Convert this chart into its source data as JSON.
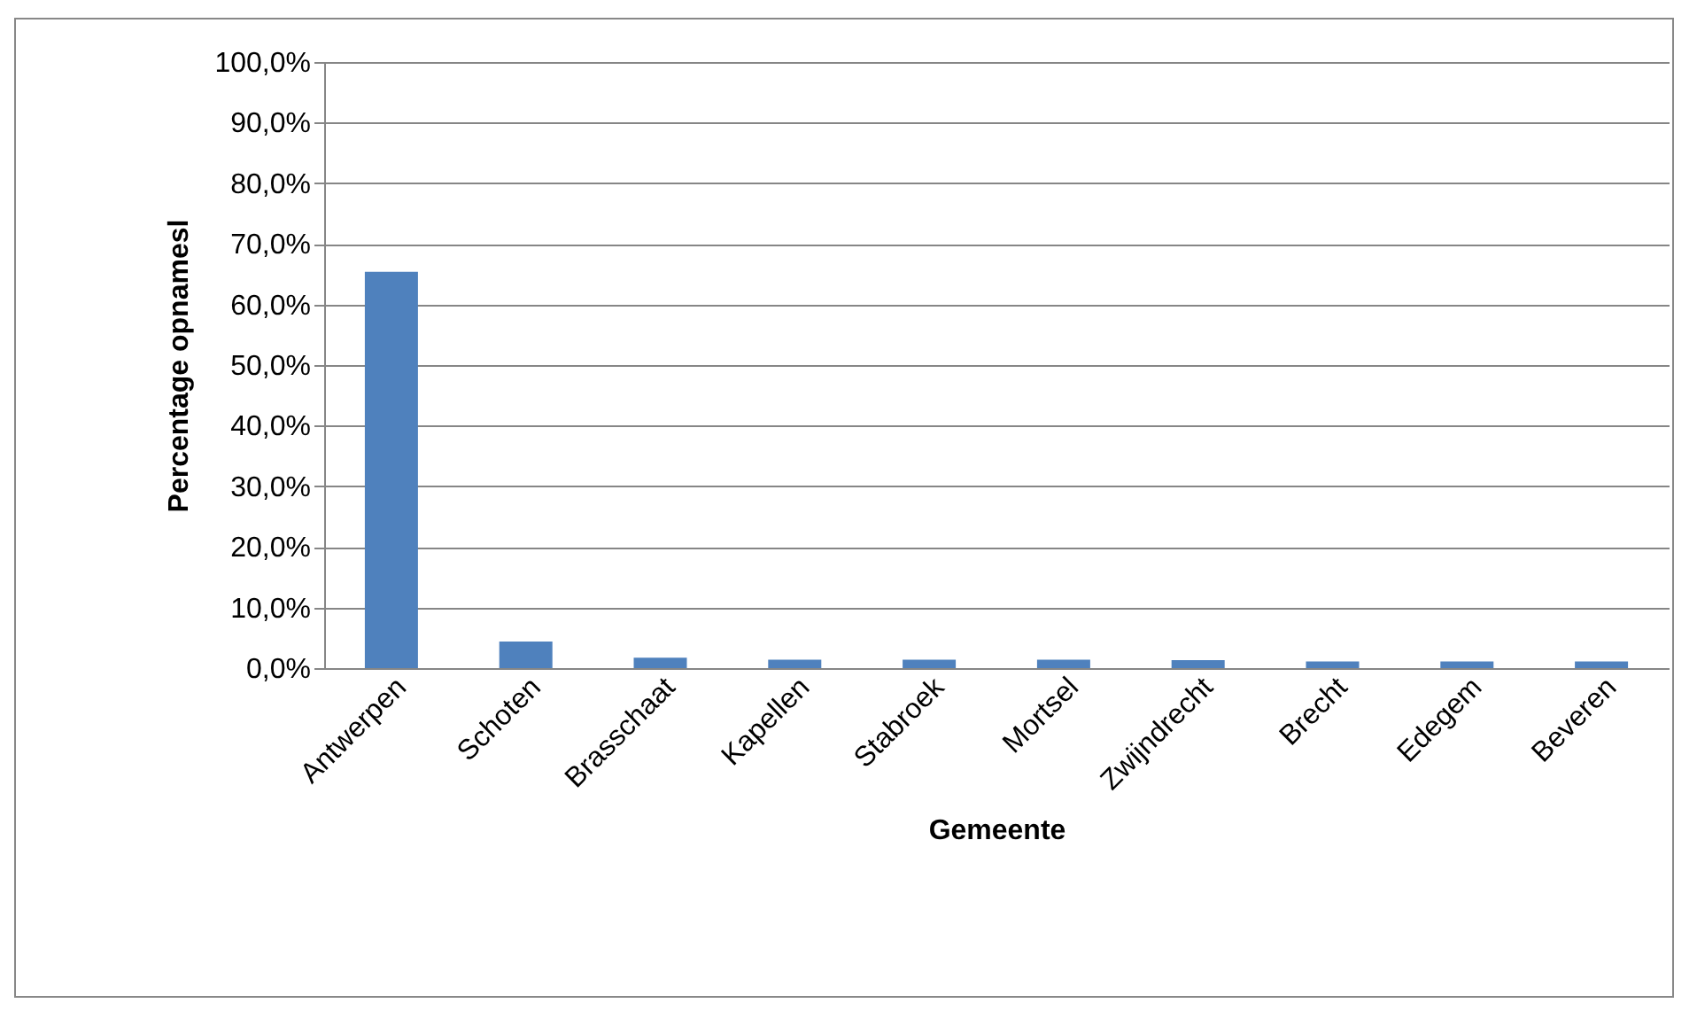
{
  "chart_data": {
    "type": "bar",
    "xlabel": "Gemeente",
    "ylabel": "Percentage opnamesl",
    "categories": [
      "Antwerpen",
      "Schoten",
      "Brasschaat",
      "Kapellen",
      "Stabroek",
      "Mortsel",
      "Zwijndrecht",
      "Brecht",
      "Edegem",
      "Beveren"
    ],
    "values": [
      65.4,
      4.4,
      1.7,
      1.4,
      1.4,
      1.4,
      1.3,
      1.1,
      1.1,
      1.1
    ],
    "color": "#4f81bd",
    "ylim": [
      0,
      100
    ],
    "yticks": [
      {
        "value": 0,
        "label": "0,0%"
      },
      {
        "value": 10,
        "label": "10,0%"
      },
      {
        "value": 20,
        "label": "20,0%"
      },
      {
        "value": 30,
        "label": "30,0%"
      },
      {
        "value": 40,
        "label": "40,0%"
      },
      {
        "value": 50,
        "label": "50,0%"
      },
      {
        "value": 60,
        "label": "60,0%"
      },
      {
        "value": 70,
        "label": "70,0%"
      },
      {
        "value": 80,
        "label": "80,0%"
      },
      {
        "value": 90,
        "label": "90,0%"
      },
      {
        "value": 100,
        "label": "100,0%"
      }
    ],
    "grid": "y"
  }
}
